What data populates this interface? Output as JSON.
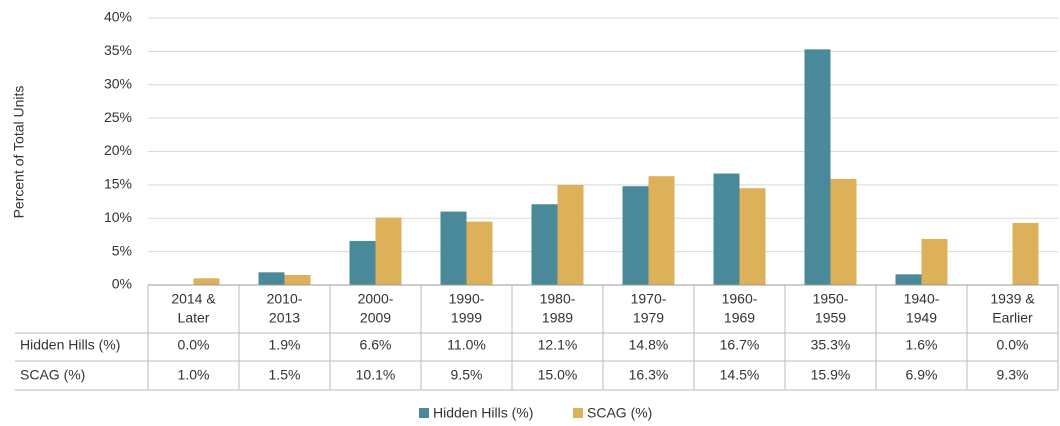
{
  "chart_data": {
    "type": "bar",
    "y_label": "Percent of Total Units",
    "categories": [
      [
        "2014 &",
        "Later"
      ],
      [
        "2010-",
        "2013"
      ],
      [
        "2000-",
        "2009"
      ],
      [
        "1990-",
        "1999"
      ],
      [
        "1980-",
        "1989"
      ],
      [
        "1970-",
        "1979"
      ],
      [
        "1960-",
        "1969"
      ],
      [
        "1950-",
        "1959"
      ],
      [
        "1940-",
        "1949"
      ],
      [
        "1939 &",
        "Earlier"
      ]
    ],
    "series": [
      {
        "name": "Hidden Hills (%)",
        "color": "#4a8999",
        "values": [
          0.0,
          1.9,
          6.6,
          11.0,
          12.1,
          14.8,
          16.7,
          35.3,
          1.6,
          0.0
        ],
        "value_labels": [
          "0.0%",
          "1.9%",
          "6.6%",
          "11.0%",
          "12.1%",
          "14.8%",
          "16.7%",
          "35.3%",
          "1.6%",
          "0.0%"
        ]
      },
      {
        "name": "SCAG (%)",
        "color": "#ddb05a",
        "values": [
          1.0,
          1.5,
          10.1,
          9.5,
          15.0,
          16.3,
          14.5,
          15.9,
          6.9,
          9.3
        ],
        "value_labels": [
          "1.0%",
          "1.5%",
          "10.1%",
          "9.5%",
          "15.0%",
          "16.3%",
          "14.5%",
          "15.9%",
          "6.9%",
          "9.3%"
        ]
      }
    ],
    "ylim": [
      0,
      40
    ],
    "yticks": [
      {
        "value": 0,
        "label": "0%"
      },
      {
        "value": 5,
        "label": "5%"
      },
      {
        "value": 10,
        "label": "10%"
      },
      {
        "value": 15,
        "label": "15%"
      },
      {
        "value": 20,
        "label": "20%"
      },
      {
        "value": 25,
        "label": "25%"
      },
      {
        "value": 30,
        "label": "30%"
      },
      {
        "value": 35,
        "label": "35%"
      },
      {
        "value": 40,
        "label": "40%"
      }
    ],
    "grid": true,
    "legend": "bottom"
  }
}
